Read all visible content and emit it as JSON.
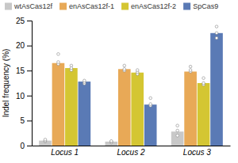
{
  "chart_data": {
    "type": "bar",
    "ylabel": "Indel frequency (%)",
    "categories": [
      "Locus 1",
      "Locus 2",
      "Locus 3"
    ],
    "series": [
      {
        "name": "wtAsCas12f",
        "color": "#c8c8c8",
        "values": [
          1.0,
          0.8,
          2.8
        ],
        "dots": [
          [
            0.8,
            1.0,
            1.2
          ],
          [
            0.6,
            0.8,
            0.9
          ],
          [
            2.0,
            3.0,
            4.0
          ]
        ]
      },
      {
        "name": "enAsCas12f-1",
        "color": "#e8a957",
        "values": [
          16.5,
          15.3,
          14.8
        ],
        "dots": [
          [
            16.3,
            16.7,
            18.3
          ],
          [
            15.0,
            15.3,
            16.0
          ],
          [
            14.8,
            15.1,
            15.8
          ]
        ]
      },
      {
        "name": "enAsCas12f-2",
        "color": "#d4c632",
        "values": [
          15.5,
          14.6,
          12.5
        ],
        "dots": [
          [
            15.1,
            15.5,
            16.0
          ],
          [
            14.3,
            14.7,
            15.1
          ],
          [
            12.2,
            12.5,
            13.5
          ]
        ]
      },
      {
        "name": "SpCas9",
        "color": "#5a7ab5",
        "values": [
          12.8,
          8.2,
          22.5
        ],
        "dots": [
          [
            12.4,
            12.7,
            13.0
          ],
          [
            8.0,
            8.3,
            9.5
          ],
          [
            21.5,
            22.5,
            23.8
          ]
        ]
      }
    ],
    "ylim": [
      0,
      25
    ],
    "yticks": [
      0,
      5,
      10,
      15,
      20,
      25
    ],
    "legend": "top",
    "grid": false
  }
}
